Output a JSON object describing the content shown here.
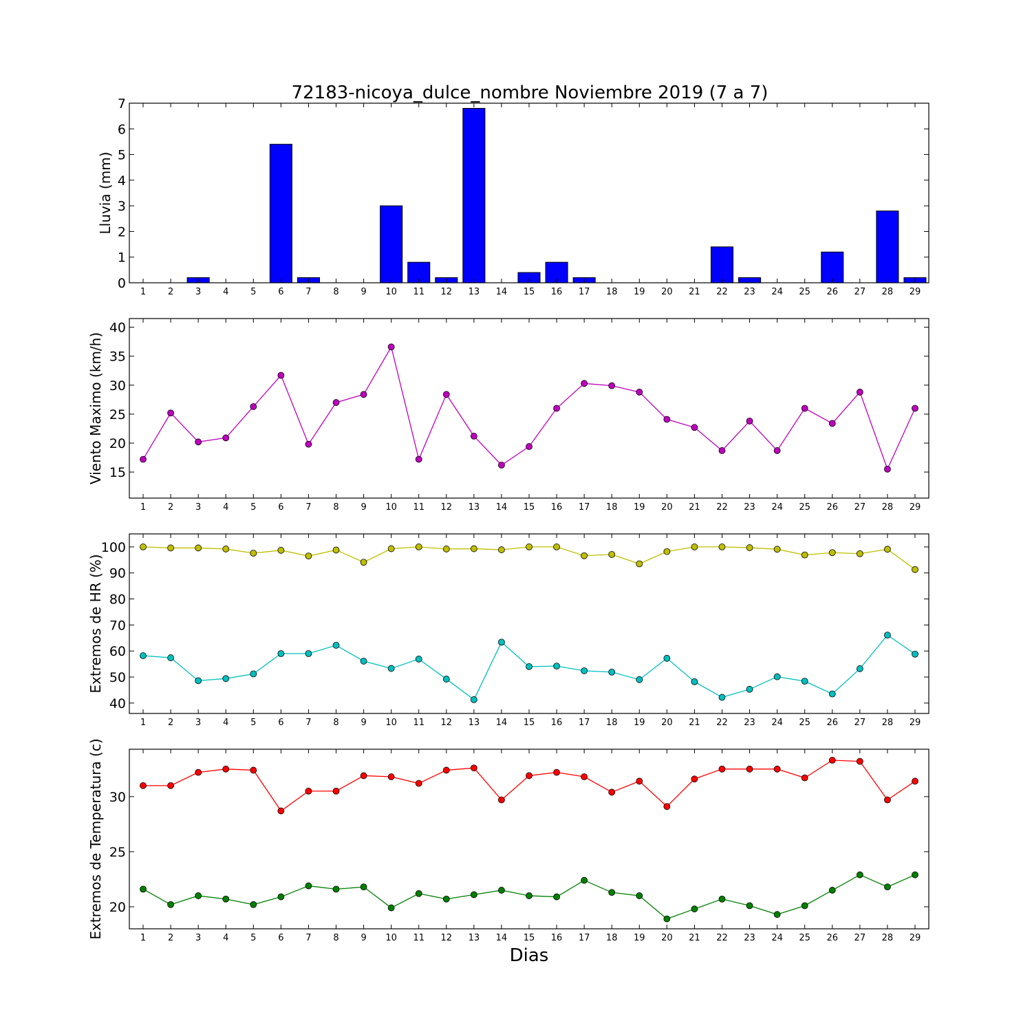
{
  "chart_data": {
    "title": "72183-nicoya_dulce_nombre Noviembre 2019  (7 a 7)",
    "xlabel": "Dias",
    "days": [
      1,
      2,
      3,
      4,
      5,
      6,
      7,
      8,
      9,
      10,
      11,
      12,
      13,
      14,
      15,
      16,
      17,
      18,
      19,
      20,
      21,
      22,
      23,
      24,
      25,
      26,
      27,
      28,
      29
    ],
    "panels": [
      {
        "type": "bar",
        "ylabel": "Lluvia (mm)",
        "ylim": [
          0,
          7
        ],
        "yticks": [
          0,
          1,
          2,
          3,
          4,
          5,
          6,
          7
        ],
        "series": [
          {
            "color": "#0000ff",
            "values": [
              0,
              0,
              0.2,
              0,
              0,
              5.4,
              0.2,
              0,
              0,
              3.0,
              0.8,
              0.2,
              6.8,
              0,
              0.4,
              0.8,
              0.2,
              0,
              0,
              0,
              0,
              1.4,
              0.2,
              0,
              0,
              1.2,
              0,
              2.8,
              0.2
            ]
          }
        ]
      },
      {
        "type": "line",
        "ylabel": "Viento Maximo (km/h)",
        "ylim": [
          10.5,
          41.5
        ],
        "yticks": [
          15,
          20,
          25,
          30,
          35,
          40
        ],
        "series": [
          {
            "color": "#bf00bf",
            "values": [
              17.2,
              25.2,
              20.2,
              20.9,
              26.3,
              31.7,
              19.8,
              27.0,
              28.4,
              36.6,
              17.2,
              28.4,
              21.2,
              16.2,
              19.4,
              26.0,
              30.3,
              29.9,
              28.8,
              24.1,
              22.7,
              18.7,
              23.8,
              18.7,
              26.0,
              23.4,
              28.8,
              15.5,
              26.0
            ]
          }
        ]
      },
      {
        "type": "line",
        "ylabel": "Extremos de HR (%)",
        "ylim": [
          36,
          105
        ],
        "yticks": [
          40,
          50,
          60,
          70,
          80,
          90,
          100
        ],
        "series": [
          {
            "color": "#bfbf00",
            "values": [
              100,
              99.6,
              99.6,
              99.2,
              97.6,
              98.7,
              96.5,
              98.8,
              94.1,
              99.3,
              100,
              99.2,
              99.3,
              98.9,
              100,
              100,
              96.6,
              97.1,
              93.5,
              98.2,
              100,
              100,
              99.7,
              99.1,
              96.9,
              97.8,
              97.4,
              99.1,
              91.3
            ]
          },
          {
            "color": "#00bfbf",
            "values": [
              58.2,
              57.4,
              48.6,
              49.4,
              51.2,
              59.0,
              59.0,
              62.2,
              56.1,
              53.3,
              56.9,
              49.2,
              41.3,
              63.4,
              54.0,
              54.2,
              52.4,
              51.9,
              49.0,
              57.2,
              48.2,
              42.2,
              45.3,
              50.1,
              48.4,
              43.5,
              53.2,
              66.1,
              58.8
            ]
          }
        ]
      },
      {
        "type": "line",
        "ylabel": "Extremos de Temperatura (c)",
        "ylim": [
          18,
          34.3
        ],
        "yticks": [
          20,
          25,
          30
        ],
        "series": [
          {
            "color": "#ff0000",
            "values": [
              31.0,
              31.0,
              32.2,
              32.5,
              32.4,
              28.7,
              30.5,
              30.5,
              31.9,
              31.8,
              31.2,
              32.4,
              32.6,
              29.7,
              31.9,
              32.2,
              31.8,
              30.4,
              31.4,
              29.1,
              31.6,
              32.5,
              32.5,
              32.5,
              31.7,
              33.3,
              33.2,
              29.7,
              31.4
            ]
          },
          {
            "color": "#008000",
            "values": [
              21.6,
              20.2,
              21.0,
              20.7,
              20.2,
              20.9,
              21.9,
              21.6,
              21.8,
              19.9,
              21.2,
              20.7,
              21.1,
              21.5,
              21.0,
              20.9,
              22.4,
              21.3,
              21.0,
              18.9,
              19.8,
              20.7,
              20.1,
              19.3,
              20.1,
              21.5,
              22.9,
              21.8,
              22.9
            ]
          }
        ]
      }
    ]
  }
}
